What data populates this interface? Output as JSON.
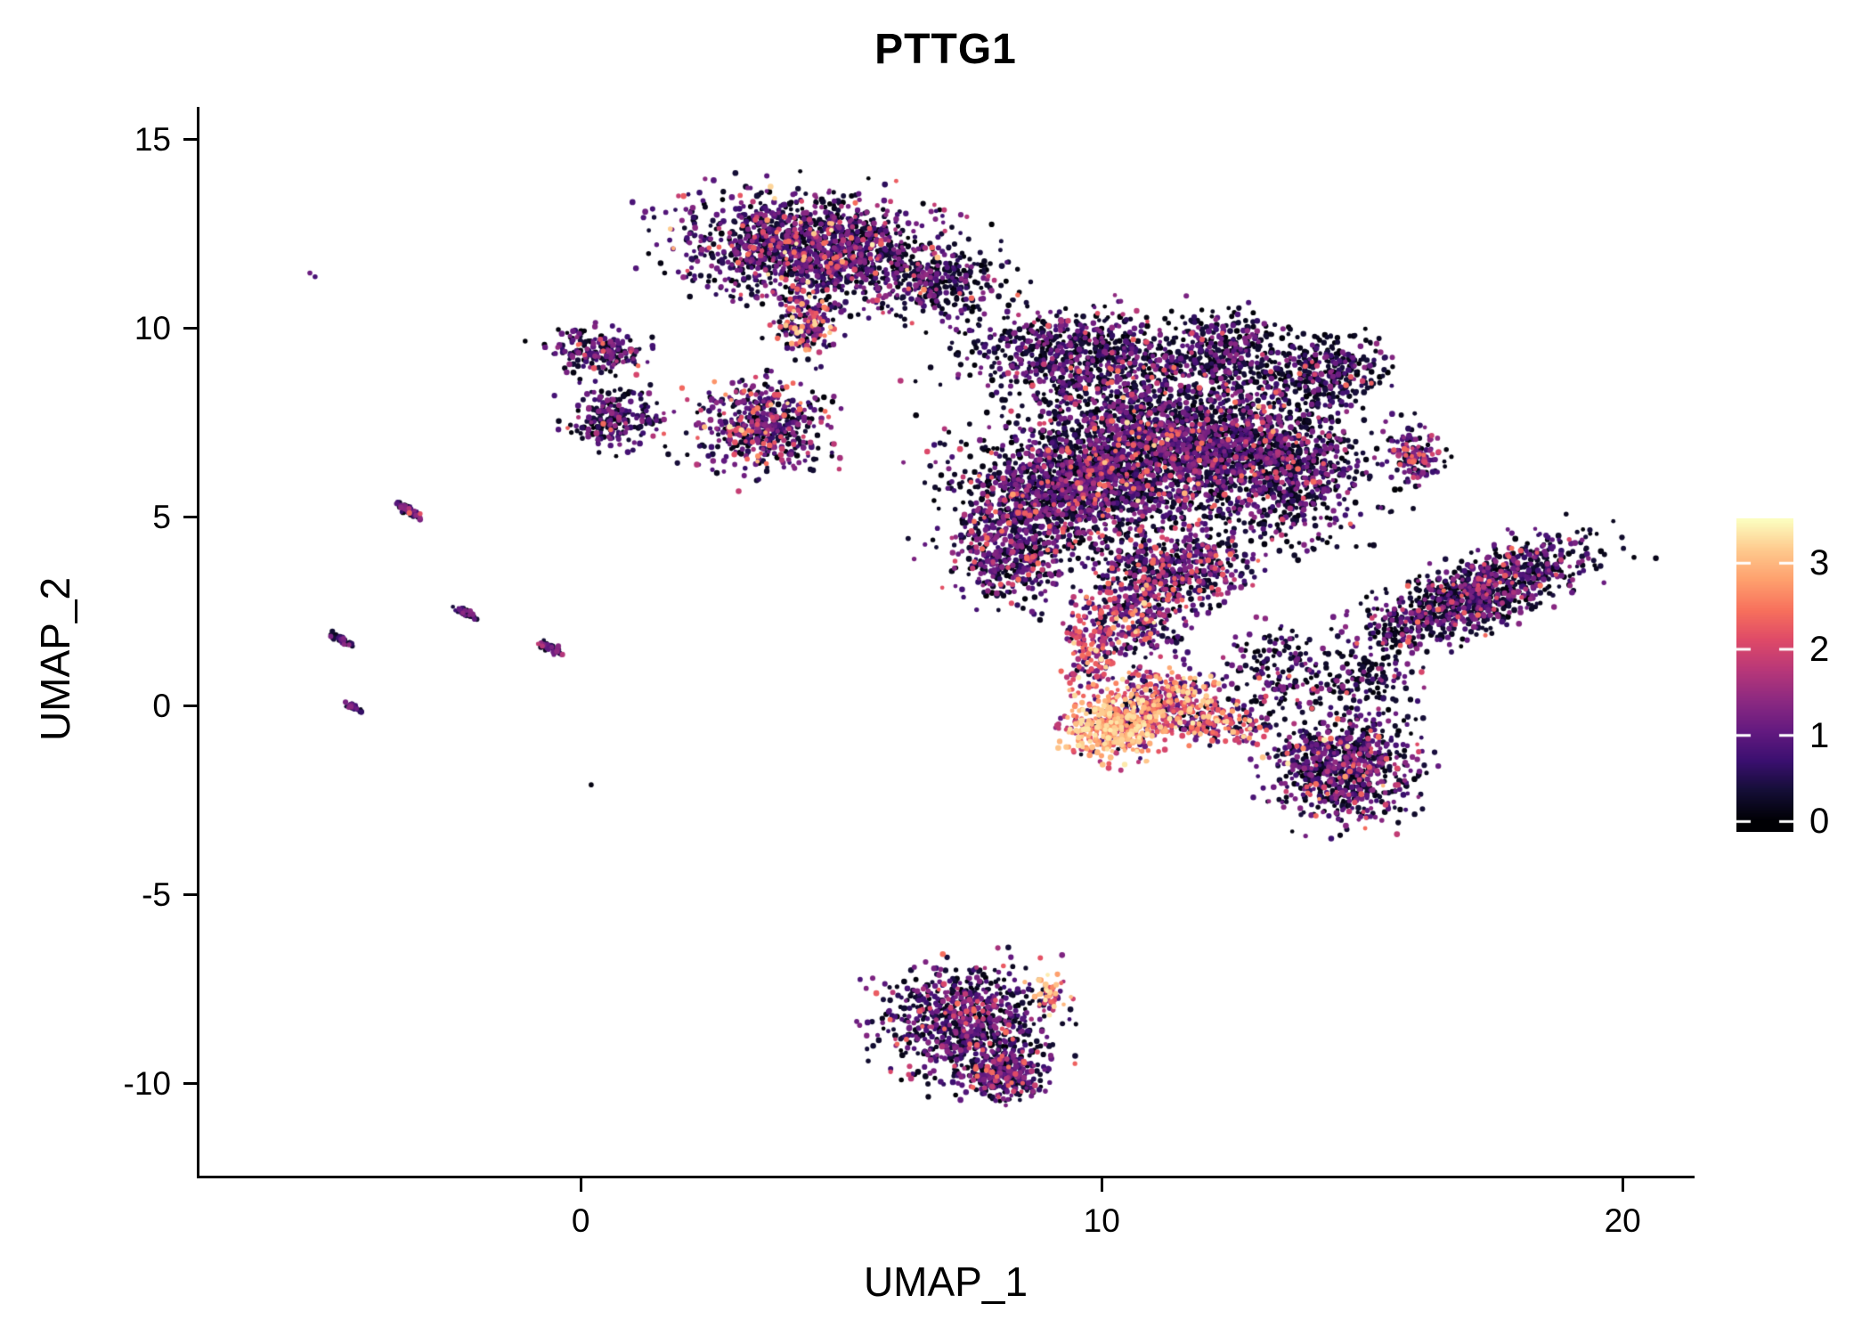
{
  "chart_data": {
    "type": "scatter",
    "title": "PTTG1",
    "xlabel": "UMAP_1",
    "ylabel": "UMAP_2",
    "xlim": [
      -7.32,
      21.33
    ],
    "ylim": [
      -12.45,
      15.85
    ],
    "xticks": [
      0,
      10,
      20
    ],
    "yticks": [
      15,
      10,
      5,
      0,
      -5,
      -10
    ],
    "grid": false,
    "background": "#ffffff",
    "axis_color": "#000000",
    "point_radius_min": 2.3,
    "point_radius_var": 1.1,
    "expr_bands": [
      [
        0,
        0.4
      ],
      [
        0.55,
        1.45
      ],
      [
        1.6,
        2.45
      ],
      [
        2.55,
        3.4
      ]
    ],
    "colormap_stops": [
      [
        0.0,
        "#000004"
      ],
      [
        0.1,
        "#140e36"
      ],
      [
        0.2,
        "#3b0f70"
      ],
      [
        0.3,
        "#641a80"
      ],
      [
        0.4,
        "#8c2981"
      ],
      [
        0.5,
        "#b73779"
      ],
      [
        0.6,
        "#de4968"
      ],
      [
        0.7,
        "#f7705c"
      ],
      [
        0.8,
        "#fe9f6d"
      ],
      [
        0.9,
        "#fec98d"
      ],
      [
        1.0,
        "#fcfdbf"
      ]
    ],
    "colorbar": {
      "ticks": [
        3,
        2,
        1,
        0
      ],
      "bar_min": -0.12,
      "bar_max": 3.52,
      "scale_max": 3.5,
      "tick_color": "#ffffff"
    },
    "clusters": [
      {
        "name": "top-blob",
        "cx": 4.4,
        "cy": 12.1,
        "rx": 2.4,
        "ry": 1.35,
        "rot": -8,
        "n": 1500,
        "mix": [
          0.45,
          0.45,
          0.09,
          0.01
        ]
      },
      {
        "name": "top-blob-right-sparse",
        "cx": 7.0,
        "cy": 11.2,
        "rx": 1.2,
        "ry": 0.95,
        "rot": 0,
        "n": 260,
        "mix": [
          0.72,
          0.25,
          0.03,
          0
        ]
      },
      {
        "name": "top-blob-knob",
        "cx": 4.3,
        "cy": 10.1,
        "rx": 0.55,
        "ry": 0.85,
        "rot": 0,
        "n": 200,
        "mix": [
          0.3,
          0.42,
          0.2,
          0.08
        ]
      },
      {
        "name": "left-cluster-a",
        "cx": 0.3,
        "cy": 9.4,
        "rx": 0.95,
        "ry": 0.55,
        "rot": -10,
        "n": 200,
        "mix": [
          0.5,
          0.44,
          0.06,
          0
        ]
      },
      {
        "name": "left-cluster-b",
        "cx": 0.7,
        "cy": 7.6,
        "rx": 0.85,
        "ry": 0.8,
        "rot": 0,
        "n": 230,
        "mix": [
          0.55,
          0.4,
          0.05,
          0
        ]
      },
      {
        "name": "mid-cluster",
        "cx": 3.5,
        "cy": 7.4,
        "rx": 1.25,
        "ry": 1.15,
        "rot": 0,
        "n": 500,
        "mix": [
          0.33,
          0.5,
          0.14,
          0.03
        ]
      },
      {
        "name": "main-upper-left",
        "cx": 9.6,
        "cy": 9.3,
        "rx": 2.2,
        "ry": 1.1,
        "rot": -5,
        "n": 750,
        "mix": [
          0.6,
          0.35,
          0.05,
          0
        ]
      },
      {
        "name": "main-upper-right",
        "cx": 12.3,
        "cy": 9.4,
        "rx": 1.2,
        "ry": 1.0,
        "rot": 0,
        "n": 330,
        "mix": [
          0.65,
          0.31,
          0.04,
          0
        ]
      },
      {
        "name": "main-core",
        "cx": 11.3,
        "cy": 6.9,
        "rx": 2.6,
        "ry": 1.85,
        "rot": 0,
        "n": 1900,
        "mix": [
          0.5,
          0.42,
          0.07,
          0.01
        ]
      },
      {
        "name": "main-left",
        "cx": 9.2,
        "cy": 5.6,
        "rx": 1.9,
        "ry": 1.5,
        "rot": 0,
        "n": 1000,
        "mix": [
          0.45,
          0.45,
          0.1,
          0
        ]
      },
      {
        "name": "main-right",
        "cx": 13.6,
        "cy": 6.3,
        "rx": 1.6,
        "ry": 1.9,
        "rot": 0,
        "n": 700,
        "mix": [
          0.58,
          0.36,
          0.06,
          0
        ]
      },
      {
        "name": "main-lower-left",
        "cx": 8.2,
        "cy": 4.0,
        "rx": 1.15,
        "ry": 1.25,
        "rot": 0,
        "n": 420,
        "mix": [
          0.45,
          0.45,
          0.1,
          0
        ]
      },
      {
        "name": "main-lower-mid",
        "cx": 11.4,
        "cy": 3.6,
        "rx": 1.5,
        "ry": 1.05,
        "rot": 0,
        "n": 520,
        "mix": [
          0.4,
          0.45,
          0.15,
          0
        ]
      },
      {
        "name": "main-halo",
        "cx": 11.0,
        "cy": 6.6,
        "rx": 4.0,
        "ry": 3.0,
        "rot": 0,
        "n": 550,
        "mix": [
          0.8,
          0.18,
          0.02,
          0
        ]
      },
      {
        "name": "main-satellite-ne",
        "cx": 14.3,
        "cy": 8.9,
        "rx": 1.15,
        "ry": 0.95,
        "rot": 0,
        "n": 320,
        "mix": [
          0.7,
          0.27,
          0.03,
          0
        ]
      },
      {
        "name": "purple-streak-right",
        "cx": 16.0,
        "cy": 6.6,
        "rx": 0.5,
        "ry": 0.75,
        "rot": 0,
        "n": 130,
        "mix": [
          0.25,
          0.6,
          0.15,
          0
        ]
      },
      {
        "name": "right-wing",
        "cx": 17.1,
        "cy": 2.9,
        "rx": 2.4,
        "ry": 0.85,
        "rot": 30,
        "n": 1050,
        "mix": [
          0.55,
          0.39,
          0.06,
          0
        ]
      },
      {
        "name": "bridge-mid",
        "cx": 10.6,
        "cy": 2.3,
        "rx": 1.0,
        "ry": 1.2,
        "rot": 0,
        "n": 300,
        "mix": [
          0.3,
          0.45,
          0.2,
          0.05
        ]
      },
      {
        "name": "bridge-right",
        "cx": 13.3,
        "cy": 0.9,
        "rx": 0.95,
        "ry": 1.2,
        "rot": 0,
        "n": 180,
        "mix": [
          0.6,
          0.33,
          0.07,
          0
        ]
      },
      {
        "name": "sparse-right-low",
        "cx": 15.1,
        "cy": 0.7,
        "rx": 0.9,
        "ry": 0.7,
        "rot": 0,
        "n": 120,
        "mix": [
          0.75,
          0.22,
          0.03,
          0
        ]
      },
      {
        "name": "hot-core",
        "cx": 10.2,
        "cy": -0.6,
        "rx": 0.85,
        "ry": 0.75,
        "rot": 0,
        "n": 430,
        "mix": [
          0.03,
          0.09,
          0.3,
          0.58
        ]
      },
      {
        "name": "hot-halo",
        "cx": 11.2,
        "cy": 0.1,
        "rx": 1.05,
        "ry": 0.9,
        "rot": 0,
        "n": 380,
        "mix": [
          0.08,
          0.22,
          0.45,
          0.25
        ]
      },
      {
        "name": "hot-tail-up",
        "cx": 9.8,
        "cy": 1.5,
        "rx": 0.5,
        "ry": 1.0,
        "rot": 0,
        "n": 140,
        "mix": [
          0.1,
          0.3,
          0.5,
          0.1
        ]
      },
      {
        "name": "hot-tail-right",
        "cx": 12.3,
        "cy": -0.5,
        "rx": 0.9,
        "ry": 0.5,
        "rot": -10,
        "n": 160,
        "mix": [
          0.15,
          0.3,
          0.35,
          0.2
        ]
      },
      {
        "name": "lower-right-cluster",
        "cx": 14.6,
        "cy": -1.6,
        "rx": 1.4,
        "ry": 1.4,
        "rot": 0,
        "n": 800,
        "mix": [
          0.48,
          0.42,
          0.09,
          0.01
        ]
      },
      {
        "name": "bottom-cluster",
        "cx": 7.4,
        "cy": -8.4,
        "rx": 1.55,
        "ry": 1.45,
        "rot": 0,
        "n": 820,
        "mix": [
          0.5,
          0.42,
          0.08,
          0
        ]
      },
      {
        "name": "bottom-knob",
        "cx": 8.1,
        "cy": -9.8,
        "rx": 0.8,
        "ry": 0.65,
        "rot": -20,
        "n": 260,
        "mix": [
          0.35,
          0.55,
          0.1,
          0
        ]
      },
      {
        "name": "bottom-hot-tip",
        "cx": 9.0,
        "cy": -7.6,
        "rx": 0.35,
        "ry": 0.45,
        "rot": 0,
        "n": 55,
        "mix": [
          0.05,
          0.15,
          0.35,
          0.45
        ]
      },
      {
        "name": "streak-1",
        "cx": -3.35,
        "cy": 5.2,
        "rx": 0.3,
        "ry": 0.09,
        "rot": -38,
        "n": 60,
        "mix": [
          0.45,
          0.5,
          0.05,
          0
        ]
      },
      {
        "name": "streak-2",
        "cx": -2.2,
        "cy": 2.45,
        "rx": 0.22,
        "ry": 0.08,
        "rot": -38,
        "n": 45,
        "mix": [
          0.55,
          0.42,
          0.03,
          0
        ]
      },
      {
        "name": "streak-3",
        "cx": -4.6,
        "cy": 1.75,
        "rx": 0.26,
        "ry": 0.09,
        "rot": -38,
        "n": 50,
        "mix": [
          0.6,
          0.37,
          0.03,
          0
        ]
      },
      {
        "name": "streak-4",
        "cx": -0.6,
        "cy": 1.55,
        "rx": 0.28,
        "ry": 0.09,
        "rot": -38,
        "n": 50,
        "mix": [
          0.55,
          0.42,
          0.03,
          0
        ]
      },
      {
        "name": "streak-5",
        "cx": -4.35,
        "cy": -0.05,
        "rx": 0.18,
        "ry": 0.07,
        "rot": -38,
        "n": 30,
        "mix": [
          0.6,
          0.38,
          0.02,
          0
        ]
      }
    ],
    "singles": [
      {
        "x": -5.2,
        "y": 11.45,
        "e": 1.1
      },
      {
        "x": -5.1,
        "y": 11.35,
        "e": 0.8
      },
      {
        "x": 0.2,
        "y": -2.1,
        "e": 0.1
      }
    ]
  }
}
